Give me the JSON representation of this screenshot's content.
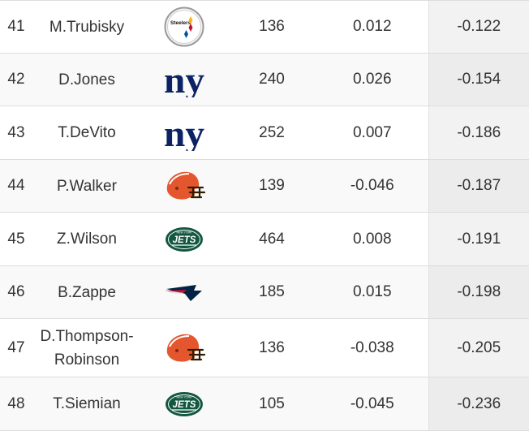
{
  "rows": [
    {
      "rank": "41",
      "player": "M.Trubisky",
      "team_logo": "steelers-logo",
      "logo_text": "Steelers",
      "plays": "136",
      "epa": "0.012",
      "metric": "-0.122"
    },
    {
      "rank": "42",
      "player": "D.Jones",
      "team_logo": "giants-logo",
      "logo_text": "ny",
      "plays": "240",
      "epa": "0.026",
      "metric": "-0.154"
    },
    {
      "rank": "43",
      "player": "T.DeVito",
      "team_logo": "giants-logo",
      "logo_text": "ny",
      "plays": "252",
      "epa": "0.007",
      "metric": "-0.186"
    },
    {
      "rank": "44",
      "player": "P.Walker",
      "team_logo": "browns-helmet-logo",
      "logo_text": "",
      "plays": "139",
      "epa": "-0.046",
      "metric": "-0.187"
    },
    {
      "rank": "45",
      "player": "Z.Wilson",
      "team_logo": "jets-logo",
      "logo_text": "JETS",
      "plays": "464",
      "epa": "0.008",
      "metric": "-0.191"
    },
    {
      "rank": "46",
      "player": "B.Zappe",
      "team_logo": "patriots-logo",
      "logo_text": "",
      "plays": "185",
      "epa": "0.015",
      "metric": "-0.198"
    },
    {
      "rank": "47",
      "player": "D.Thompson-\nRobinson",
      "team_logo": "browns-helmet-logo",
      "logo_text": "",
      "plays": "136",
      "epa": "-0.038",
      "metric": "-0.205"
    },
    {
      "rank": "48",
      "player": "T.Siemian",
      "team_logo": "jets-logo",
      "logo_text": "JETS",
      "plays": "105",
      "epa": "-0.045",
      "metric": "-0.236"
    }
  ],
  "colors": {
    "steelers_yellow": "#FFB612",
    "steelers_red": "#C60C30",
    "steelers_blue": "#00539B",
    "giants_blue": "#0B2265",
    "browns_orange": "#E4572E",
    "browns_brown": "#311D00",
    "jets_green": "#125740",
    "patriots_navy": "#002244",
    "patriots_red": "#C60C30"
  }
}
